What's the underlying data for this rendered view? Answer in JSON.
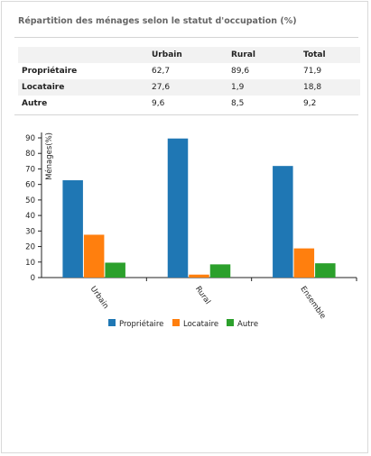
{
  "title": "Répartition des ménages selon le statut d'occupation (%)",
  "table": {
    "headers": [
      "",
      "Urbain",
      "Rural",
      "Total"
    ],
    "rows": [
      {
        "label": "Propriétaire",
        "values": [
          "62,7",
          "89,6",
          "71,9"
        ]
      },
      {
        "label": "Locataire",
        "values": [
          "27,6",
          "1,9",
          "18,8"
        ]
      },
      {
        "label": "Autre",
        "values": [
          "9,6",
          "8,5",
          "9,2"
        ]
      }
    ]
  },
  "chart_data": {
    "type": "bar",
    "categories": [
      "Urbain",
      "Rural",
      "Ensemble"
    ],
    "series": [
      {
        "name": "Propriétaire",
        "values": [
          62.7,
          89.6,
          71.9
        ],
        "color": "#1f77b4"
      },
      {
        "name": "Locataire",
        "values": [
          27.6,
          1.9,
          18.8
        ],
        "color": "#ff7f0e"
      },
      {
        "name": "Autre",
        "values": [
          9.6,
          8.5,
          9.2
        ],
        "color": "#2ca02c"
      }
    ],
    "xlabel": "",
    "ylabel": "Ménages(%)",
    "ylim": [
      0,
      90
    ],
    "yticks": [
      0,
      10,
      20,
      30,
      40,
      50,
      60,
      70,
      80,
      90
    ],
    "legend": "bottom",
    "grid": false
  }
}
